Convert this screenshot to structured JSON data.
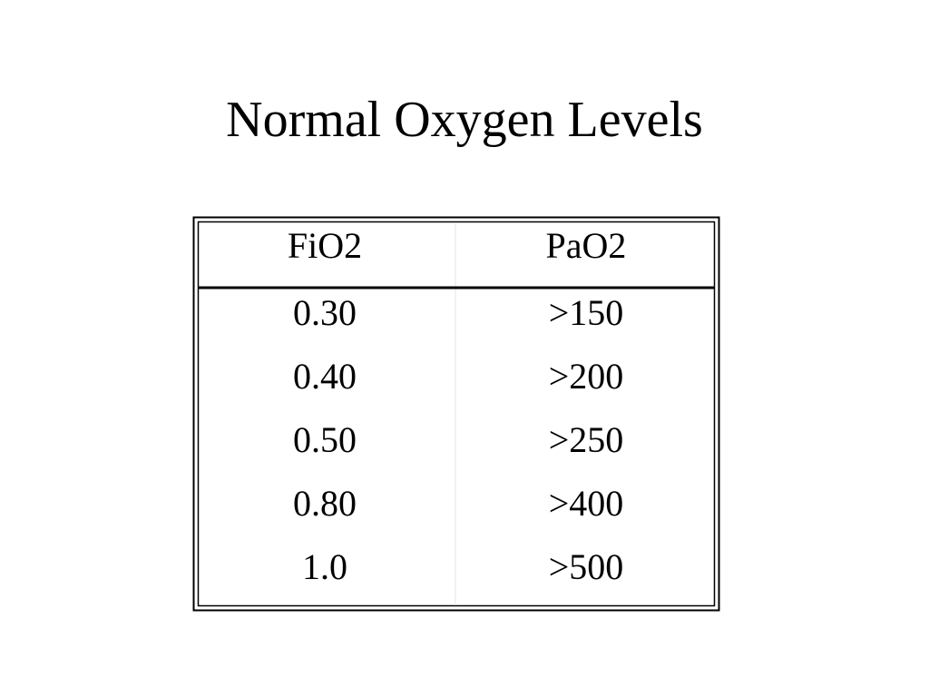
{
  "title": "Normal Oxygen Levels",
  "table": {
    "header": [
      "FiO2",
      "PaO2"
    ],
    "rows": [
      [
        "0.30",
        ">150"
      ],
      [
        "0.40",
        ">200"
      ],
      [
        "0.50",
        ">250"
      ],
      [
        "0.80",
        ">400"
      ],
      [
        "1.0",
        ">500"
      ]
    ]
  }
}
